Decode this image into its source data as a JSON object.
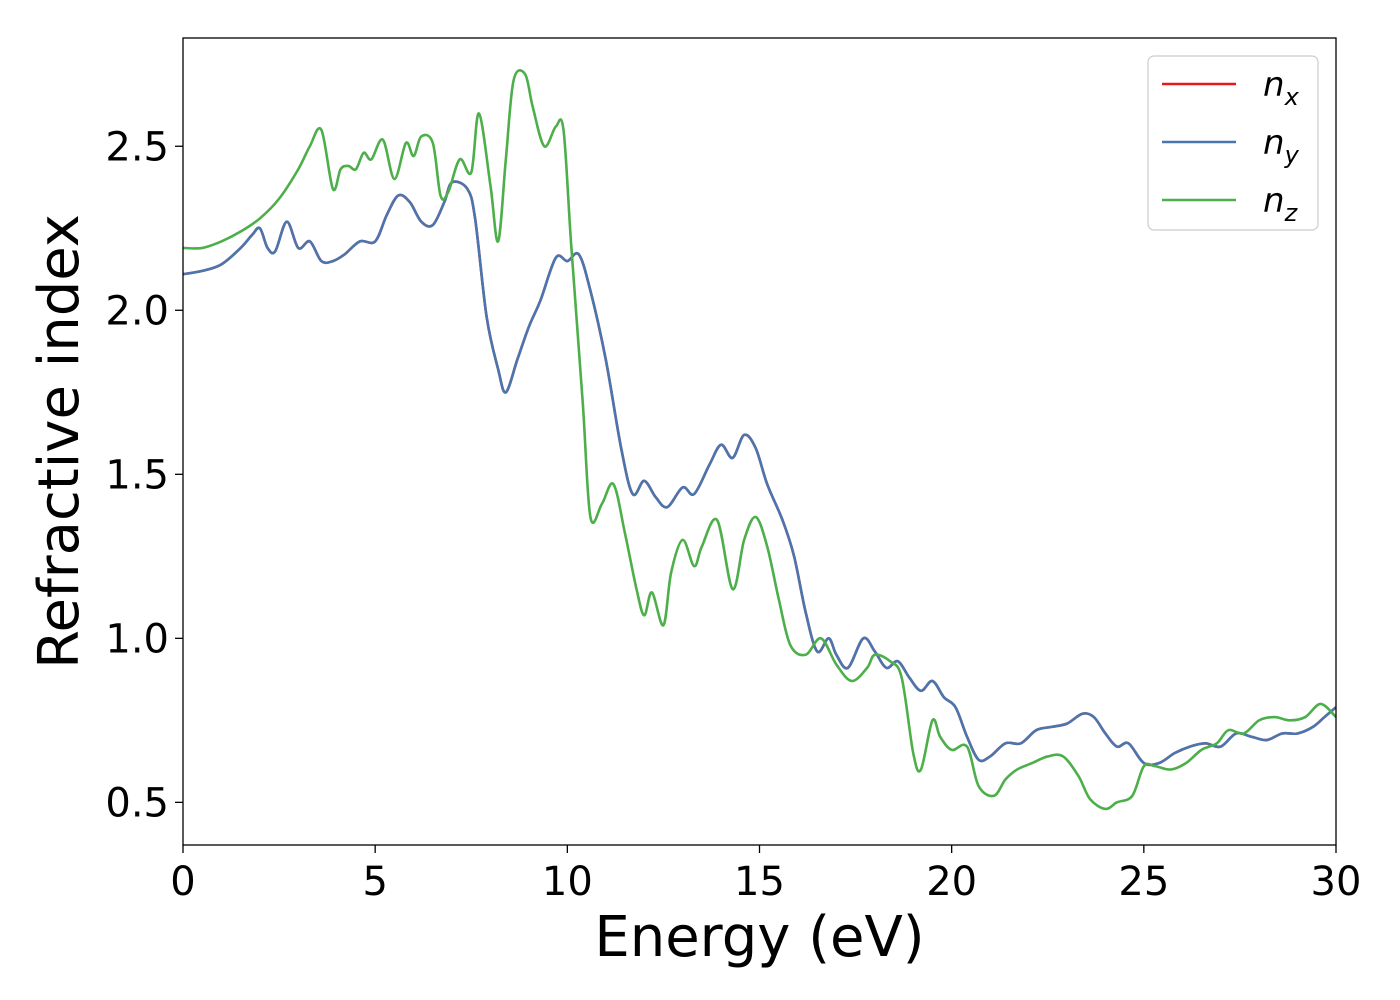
{
  "chart_data": {
    "type": "line",
    "title": "",
    "xlabel": "Energy (eV)",
    "ylabel": "Refractive index",
    "xlim": [
      0,
      30
    ],
    "ylim": [
      0.37,
      2.83
    ],
    "xticks": [
      0,
      5,
      10,
      15,
      20,
      25,
      30
    ],
    "xtick_labels": [
      "0",
      "5",
      "10",
      "15",
      "20",
      "25",
      "30"
    ],
    "yticks": [
      0.5,
      1.0,
      1.5,
      2.0,
      2.5
    ],
    "ytick_labels": [
      "0.5",
      "1.0",
      "1.5",
      "2.0",
      "2.5"
    ],
    "grid": false,
    "legend_position": "top-right",
    "series": [
      {
        "name": "n",
        "subscript": "x",
        "color": "#e41a1c",
        "x": [
          0,
          0.5,
          1,
          1.5,
          1.8,
          2.0,
          2.2,
          2.4,
          2.7,
          3.0,
          3.3,
          3.6,
          3.9,
          4.2,
          4.6,
          5.0,
          5.3,
          5.6,
          5.9,
          6.2,
          6.5,
          6.8,
          7.0,
          7.4,
          7.6,
          7.9,
          8.2,
          8.4,
          8.7,
          9.0,
          9.3,
          9.7,
          10.0,
          10.3,
          10.6,
          11.0,
          11.4,
          11.7,
          12.0,
          12.3,
          12.6,
          13.0,
          13.3,
          13.7,
          14.0,
          14.3,
          14.6,
          14.9,
          15.2,
          15.6,
          15.9,
          16.2,
          16.5,
          16.8,
          17.0,
          17.3,
          17.7,
          18.0,
          18.3,
          18.6,
          18.9,
          19.2,
          19.5,
          19.8,
          20.1,
          20.4,
          20.7,
          21.0,
          21.4,
          21.8,
          22.2,
          22.6,
          23.0,
          23.4,
          23.7,
          24.0,
          24.3,
          24.6,
          25.0,
          25.4,
          25.8,
          26.2,
          26.6,
          27.0,
          27.4,
          27.8,
          28.2,
          28.6,
          29.0,
          29.4,
          29.7,
          30.0
        ],
        "values": [
          2.11,
          2.12,
          2.14,
          2.19,
          2.23,
          2.25,
          2.19,
          2.18,
          2.27,
          2.19,
          2.21,
          2.15,
          2.15,
          2.17,
          2.21,
          2.21,
          2.29,
          2.35,
          2.33,
          2.27,
          2.26,
          2.33,
          2.39,
          2.37,
          2.28,
          1.98,
          1.82,
          1.75,
          1.85,
          1.95,
          2.03,
          2.16,
          2.15,
          2.17,
          2.06,
          1.85,
          1.58,
          1.44,
          1.48,
          1.43,
          1.4,
          1.46,
          1.44,
          1.53,
          1.59,
          1.55,
          1.62,
          1.58,
          1.47,
          1.36,
          1.25,
          1.08,
          0.96,
          1.0,
          0.95,
          0.91,
          1.0,
          0.96,
          0.91,
          0.93,
          0.88,
          0.84,
          0.87,
          0.82,
          0.79,
          0.7,
          0.63,
          0.64,
          0.68,
          0.68,
          0.72,
          0.73,
          0.74,
          0.77,
          0.76,
          0.71,
          0.67,
          0.68,
          0.62,
          0.62,
          0.65,
          0.67,
          0.68,
          0.67,
          0.71,
          0.7,
          0.69,
          0.71,
          0.71,
          0.73,
          0.76,
          0.79
        ]
      },
      {
        "name": "n",
        "subscript": "y",
        "color": "#4a76b0",
        "x": [
          0,
          0.5,
          1,
          1.5,
          1.8,
          2.0,
          2.2,
          2.4,
          2.7,
          3.0,
          3.3,
          3.6,
          3.9,
          4.2,
          4.6,
          5.0,
          5.3,
          5.6,
          5.9,
          6.2,
          6.5,
          6.8,
          7.0,
          7.4,
          7.6,
          7.9,
          8.2,
          8.4,
          8.7,
          9.0,
          9.3,
          9.7,
          10.0,
          10.3,
          10.6,
          11.0,
          11.4,
          11.7,
          12.0,
          12.3,
          12.6,
          13.0,
          13.3,
          13.7,
          14.0,
          14.3,
          14.6,
          14.9,
          15.2,
          15.6,
          15.9,
          16.2,
          16.5,
          16.8,
          17.0,
          17.3,
          17.7,
          18.0,
          18.3,
          18.6,
          18.9,
          19.2,
          19.5,
          19.8,
          20.1,
          20.4,
          20.7,
          21.0,
          21.4,
          21.8,
          22.2,
          22.6,
          23.0,
          23.4,
          23.7,
          24.0,
          24.3,
          24.6,
          25.0,
          25.4,
          25.8,
          26.2,
          26.6,
          27.0,
          27.4,
          27.8,
          28.2,
          28.6,
          29.0,
          29.4,
          29.7,
          30.0
        ],
        "values": [
          2.11,
          2.12,
          2.14,
          2.19,
          2.23,
          2.25,
          2.19,
          2.18,
          2.27,
          2.19,
          2.21,
          2.15,
          2.15,
          2.17,
          2.21,
          2.21,
          2.29,
          2.35,
          2.33,
          2.27,
          2.26,
          2.33,
          2.39,
          2.37,
          2.28,
          1.98,
          1.82,
          1.75,
          1.85,
          1.95,
          2.03,
          2.16,
          2.15,
          2.17,
          2.06,
          1.85,
          1.58,
          1.44,
          1.48,
          1.43,
          1.4,
          1.46,
          1.44,
          1.53,
          1.59,
          1.55,
          1.62,
          1.58,
          1.47,
          1.36,
          1.25,
          1.08,
          0.96,
          1.0,
          0.95,
          0.91,
          1.0,
          0.96,
          0.91,
          0.93,
          0.88,
          0.84,
          0.87,
          0.82,
          0.79,
          0.7,
          0.63,
          0.64,
          0.68,
          0.68,
          0.72,
          0.73,
          0.74,
          0.77,
          0.76,
          0.71,
          0.67,
          0.68,
          0.62,
          0.62,
          0.65,
          0.67,
          0.68,
          0.67,
          0.71,
          0.7,
          0.69,
          0.71,
          0.71,
          0.73,
          0.76,
          0.79
        ]
      },
      {
        "name": "n",
        "subscript": "z",
        "color": "#4daf4a",
        "x": [
          0,
          0.5,
          1,
          1.5,
          2.0,
          2.5,
          3.0,
          3.3,
          3.6,
          3.9,
          4.1,
          4.3,
          4.5,
          4.7,
          4.9,
          5.2,
          5.5,
          5.8,
          6.0,
          6.2,
          6.5,
          6.7,
          6.9,
          7.2,
          7.5,
          7.7,
          8.0,
          8.2,
          8.4,
          8.6,
          8.9,
          9.1,
          9.4,
          9.7,
          9.9,
          10.1,
          10.4,
          10.6,
          10.9,
          11.2,
          11.5,
          11.8,
          12.0,
          12.2,
          12.5,
          12.7,
          13.0,
          13.3,
          13.5,
          13.9,
          14.3,
          14.6,
          14.9,
          15.2,
          15.5,
          15.8,
          16.2,
          16.6,
          17.0,
          17.4,
          17.8,
          18.0,
          18.4,
          18.7,
          19.0,
          19.2,
          19.5,
          19.7,
          20.0,
          20.4,
          20.7,
          21.1,
          21.4,
          21.7,
          22.1,
          22.5,
          22.9,
          23.3,
          23.6,
          24.0,
          24.3,
          24.7,
          25.0,
          25.3,
          25.7,
          26.1,
          26.5,
          26.9,
          27.2,
          27.6,
          28.0,
          28.4,
          28.8,
          29.2,
          29.6,
          30.0
        ],
        "values": [
          2.19,
          2.19,
          2.21,
          2.24,
          2.28,
          2.34,
          2.43,
          2.5,
          2.55,
          2.37,
          2.43,
          2.44,
          2.43,
          2.48,
          2.46,
          2.52,
          2.4,
          2.51,
          2.47,
          2.53,
          2.51,
          2.35,
          2.36,
          2.46,
          2.42,
          2.6,
          2.38,
          2.21,
          2.46,
          2.7,
          2.72,
          2.62,
          2.5,
          2.56,
          2.55,
          2.2,
          1.72,
          1.37,
          1.41,
          1.47,
          1.32,
          1.15,
          1.07,
          1.14,
          1.04,
          1.2,
          1.3,
          1.22,
          1.28,
          1.36,
          1.15,
          1.3,
          1.37,
          1.28,
          1.12,
          0.98,
          0.95,
          1.0,
          0.92,
          0.87,
          0.91,
          0.95,
          0.93,
          0.88,
          0.65,
          0.6,
          0.75,
          0.7,
          0.66,
          0.67,
          0.55,
          0.52,
          0.57,
          0.6,
          0.62,
          0.64,
          0.64,
          0.58,
          0.51,
          0.48,
          0.5,
          0.52,
          0.61,
          0.61,
          0.6,
          0.62,
          0.66,
          0.68,
          0.72,
          0.71,
          0.75,
          0.76,
          0.75,
          0.76,
          0.8,
          0.76
        ]
      }
    ]
  }
}
